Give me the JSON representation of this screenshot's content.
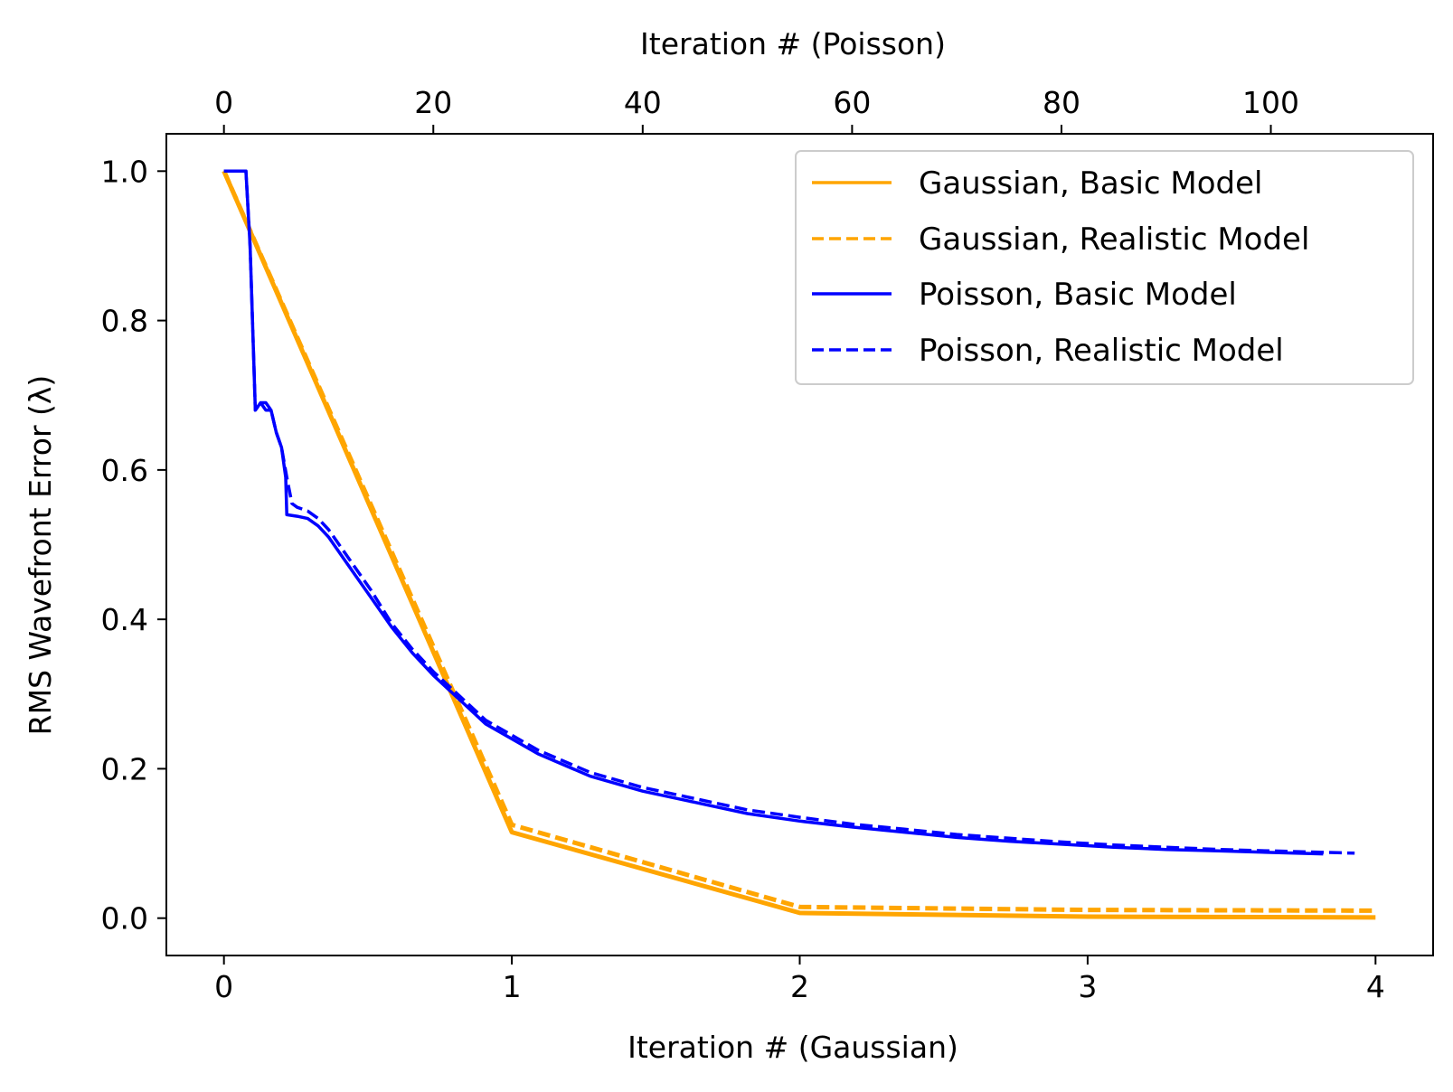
{
  "chart_data": {
    "type": "line",
    "title": "",
    "xlabel": "Iteration # (Gaussian)",
    "x2label": "Iteration # (Poisson)",
    "ylabel": "RMS Wavefront Error (λ)",
    "xlim": [
      -0.2,
      4.2
    ],
    "x2lim": [
      -5.5,
      115.5
    ],
    "ylim": [
      -0.05,
      1.05
    ],
    "xticks": [
      "0",
      "1",
      "2",
      "3",
      "4"
    ],
    "x2ticks": [
      "0",
      "20",
      "40",
      "60",
      "80",
      "100"
    ],
    "yticks": [
      "0.0",
      "0.2",
      "0.4",
      "0.6",
      "0.8",
      "1.0"
    ],
    "grid": false,
    "legend_position": "top-right",
    "series": [
      {
        "name": "Gaussian, Basic Model",
        "axis": "bottom",
        "color": "#FFA500",
        "dash": "solid",
        "x": [
          0,
          1,
          2,
          3,
          4
        ],
        "y": [
          1.0,
          0.115,
          0.007,
          0.002,
          0.001
        ]
      },
      {
        "name": "Gaussian, Realistic Model",
        "axis": "bottom",
        "color": "#FFA500",
        "dash": "dashed",
        "x": [
          0,
          1,
          2,
          3,
          4
        ],
        "y": [
          1.0,
          0.125,
          0.015,
          0.011,
          0.01
        ]
      },
      {
        "name": "Poisson, Basic Model",
        "axis": "top",
        "color": "#0000FF",
        "dash": "solid",
        "x": [
          0,
          1,
          2,
          2.1,
          2.5,
          3,
          3.5,
          4,
          4.5,
          5,
          5.5,
          5.9,
          6,
          7,
          8,
          9,
          10,
          12,
          14,
          16,
          18,
          20,
          25,
          30,
          35,
          40,
          45,
          50,
          55,
          60,
          65,
          70,
          75,
          80,
          85,
          90,
          95,
          100,
          105
        ],
        "y": [
          1.0,
          1.0,
          1.0,
          1.0,
          0.9,
          0.68,
          0.69,
          0.68,
          0.68,
          0.65,
          0.63,
          0.59,
          0.54,
          0.538,
          0.535,
          0.525,
          0.51,
          0.47,
          0.43,
          0.39,
          0.355,
          0.325,
          0.26,
          0.22,
          0.19,
          0.17,
          0.155,
          0.14,
          0.13,
          0.122,
          0.115,
          0.108,
          0.103,
          0.099,
          0.095,
          0.092,
          0.09,
          0.088,
          0.086
        ]
      },
      {
        "name": "Poisson, Realistic Model",
        "axis": "top",
        "color": "#0000FF",
        "dash": "dashed",
        "x": [
          0,
          1,
          2,
          2.1,
          2.5,
          3,
          3.5,
          4,
          4.5,
          5,
          5.5,
          6,
          6.5,
          7,
          8,
          9,
          10,
          12,
          14,
          16,
          18,
          20,
          25,
          30,
          35,
          40,
          45,
          50,
          55,
          60,
          65,
          70,
          75,
          80,
          85,
          90,
          95,
          100,
          108
        ],
        "y": [
          1.0,
          1.0,
          1.0,
          1.0,
          0.9,
          0.68,
          0.69,
          0.69,
          0.68,
          0.65,
          0.63,
          0.59,
          0.555,
          0.55,
          0.545,
          0.535,
          0.52,
          0.48,
          0.44,
          0.395,
          0.36,
          0.33,
          0.265,
          0.225,
          0.195,
          0.175,
          0.16,
          0.145,
          0.135,
          0.126,
          0.119,
          0.112,
          0.107,
          0.102,
          0.098,
          0.095,
          0.092,
          0.09,
          0.087
        ]
      }
    ]
  }
}
